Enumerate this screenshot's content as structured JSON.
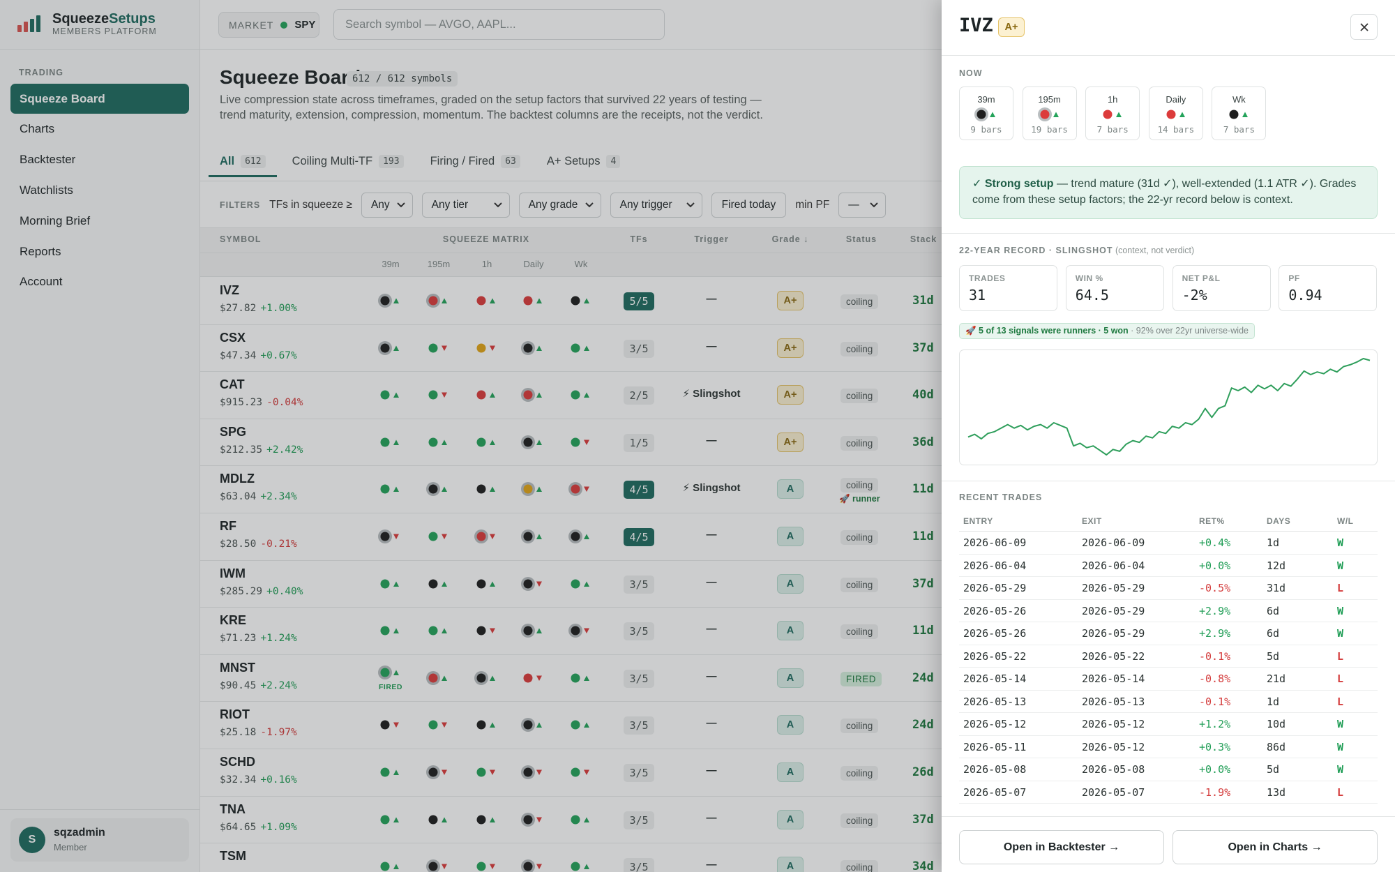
{
  "brand": {
    "name_a": "Squeeze",
    "name_b": "Setups",
    "subtitle": "MEMBERS PLATFORM"
  },
  "sidebar": {
    "section": "TRADING",
    "nav": [
      {
        "label": "Squeeze Board",
        "active": true
      },
      {
        "label": "Charts"
      },
      {
        "label": "Backtester"
      },
      {
        "label": "Watchlists"
      },
      {
        "label": "Morning Brief"
      },
      {
        "label": "Reports"
      },
      {
        "label": "Account"
      }
    ],
    "user": {
      "initial": "S",
      "name": "sqzadmin",
      "role": "Member"
    }
  },
  "topbar": {
    "market_label": "MARKET",
    "market_symbol": "SPY",
    "search_placeholder": "Search symbol — AVGO, AAPL..."
  },
  "board": {
    "title": "Squeeze Board",
    "count": "612 / 612 symbols",
    "description": "Live compression state across timeframes, graded on the setup factors that survived 22 years of testing — trend maturity, extension, compression, momentum. The backtest columns are the receipts, not the verdict.",
    "tabs": [
      {
        "label": "All",
        "count": "612",
        "active": true
      },
      {
        "label": "Coiling Multi-TF",
        "count": "193"
      },
      {
        "label": "Firing / Fired",
        "count": "63"
      },
      {
        "label": "A+ Setups",
        "count": "4"
      }
    ],
    "filters": {
      "label": "FILTERS",
      "tfs_label": "TFs in squeeze ≥",
      "tfs_select": "Any",
      "tier_select": "Any tier",
      "grade_select": "Any grade",
      "trigger_select": "Any trigger",
      "fired_button": "Fired today",
      "pf_label": "min PF",
      "pf_select": "—"
    },
    "columns": {
      "symbol": "SYMBOL",
      "matrix": "SQUEEZE MATRIX",
      "tfs": "TFs",
      "trigger": "Trigger",
      "grade": "Grade ↓",
      "status": "Status",
      "stack": "Stack"
    },
    "timeframes": [
      "39m",
      "195m",
      "1h",
      "Daily",
      "Wk"
    ],
    "rows": [
      {
        "symbol": "IVZ",
        "price": "$27.82",
        "change": "+1.00%",
        "matrix": [
          "black up ring",
          "red up ring",
          "red up",
          "red up",
          "black up"
        ],
        "tfs": "5/5",
        "trigger": "—",
        "grade": "A+",
        "status": "coiling",
        "stack": "31d"
      },
      {
        "symbol": "CSX",
        "price": "$47.34",
        "change": "+0.67%",
        "matrix": [
          "black up ring",
          "green down",
          "amber down",
          "black up ring",
          "green up"
        ],
        "tfs": "3/5",
        "trigger": "—",
        "grade": "A+",
        "status": "coiling",
        "stack": "37d"
      },
      {
        "symbol": "CAT",
        "price": "$915.23",
        "change": "-0.04%",
        "matrix": [
          "green up",
          "green down",
          "red up",
          "red up ring",
          "green up"
        ],
        "tfs": "2/5",
        "trigger": "⚡ Slingshot",
        "grade": "A+",
        "status": "coiling",
        "stack": "40d"
      },
      {
        "symbol": "SPG",
        "price": "$212.35",
        "change": "+2.42%",
        "matrix": [
          "green up",
          "green up",
          "green up",
          "black up ring",
          "green down"
        ],
        "tfs": "1/5",
        "trigger": "—",
        "grade": "A+",
        "status": "coiling",
        "stack": "36d"
      },
      {
        "symbol": "MDLZ",
        "price": "$63.04",
        "change": "+2.34%",
        "matrix": [
          "green up",
          "black up ring",
          "black up",
          "amber up ring",
          "red down ring"
        ],
        "tfs": "4/5",
        "trigger": "⚡ Slingshot",
        "grade": "A",
        "status": "coiling",
        "status_note": "🚀 runner",
        "stack": "11d"
      },
      {
        "symbol": "RF",
        "price": "$28.50",
        "change": "-0.21%",
        "matrix": [
          "black down ring",
          "green down",
          "red down ring",
          "black up ring",
          "black up ring"
        ],
        "tfs": "4/5",
        "trigger": "—",
        "grade": "A",
        "status": "coiling",
        "stack": "11d"
      },
      {
        "symbol": "IWM",
        "price": "$285.29",
        "change": "+0.40%",
        "matrix": [
          "green up",
          "black up",
          "black up",
          "black down ring",
          "green up"
        ],
        "tfs": "3/5",
        "trigger": "—",
        "grade": "A",
        "status": "coiling",
        "stack": "37d"
      },
      {
        "symbol": "KRE",
        "price": "$71.23",
        "change": "+1.24%",
        "matrix": [
          "green up",
          "green up",
          "black down",
          "black up ring",
          "black down ring"
        ],
        "tfs": "3/5",
        "trigger": "—",
        "grade": "A",
        "status": "coiling",
        "stack": "11d"
      },
      {
        "symbol": "MNST",
        "price": "$90.45",
        "change": "+2.24%",
        "matrix": [
          {
            "state": "green up ring",
            "note": "FIRED"
          },
          "red up ring",
          "black up ring",
          "red down",
          "green up"
        ],
        "tfs": "3/5",
        "trigger": "—",
        "grade": "A",
        "status": "FIRED",
        "stack": "24d"
      },
      {
        "symbol": "RIOT",
        "price": "$25.18",
        "change": "-1.97%",
        "matrix": [
          "black down",
          "green down",
          "black up",
          "black up ring",
          "green up"
        ],
        "tfs": "3/5",
        "trigger": "—",
        "grade": "A",
        "status": "coiling",
        "stack": "24d"
      },
      {
        "symbol": "SCHD",
        "price": "$32.34",
        "change": "+0.16%",
        "matrix": [
          "green up",
          "black down ring",
          "green down",
          "black down ring",
          "green down"
        ],
        "tfs": "3/5",
        "trigger": "—",
        "grade": "A",
        "status": "coiling",
        "stack": "26d"
      },
      {
        "symbol": "TNA",
        "price": "$64.65",
        "change": "+1.09%",
        "matrix": [
          "green up",
          "black up",
          "black up",
          "black down ring",
          "green up"
        ],
        "tfs": "3/5",
        "trigger": "—",
        "grade": "A",
        "status": "coiling",
        "stack": "37d"
      },
      {
        "symbol": "TSM",
        "matrix": [
          "green up",
          "black down ring",
          "green down",
          "black down ring",
          "green up"
        ],
        "tfs": "3/5",
        "trigger": "—",
        "grade": "A",
        "status": "coiling",
        "stack": "34d"
      }
    ]
  },
  "drawer": {
    "symbol": "IVZ",
    "grade": "A+",
    "now_label": "NOW",
    "now": [
      {
        "tf": "39m",
        "state": "black up ring",
        "bars": "9 bars"
      },
      {
        "tf": "195m",
        "state": "red up ring",
        "bars": "19 bars"
      },
      {
        "tf": "1h",
        "state": "red up",
        "bars": "7 bars"
      },
      {
        "tf": "Daily",
        "state": "red up",
        "bars": "14 bars"
      },
      {
        "tf": "Wk",
        "state": "black up",
        "bars": "7 bars"
      }
    ],
    "callout": {
      "strong": "✓ Strong setup",
      "text": " — trend mature (31d ✓), well-extended (1.1 ATR ✓). Grades come from these setup factors; the 22-yr record below is context."
    },
    "record": {
      "title": "22-YEAR RECORD · SLINGSHOT",
      "title_note": " (context, not verdict)",
      "stats": [
        {
          "label": "TRADES",
          "value": "31"
        },
        {
          "label": "WIN %",
          "value": "64.5"
        },
        {
          "label": "NET P&L",
          "value": "-2%"
        },
        {
          "label": "PF",
          "value": "0.94"
        }
      ],
      "runner": "🚀 5 of 13 signals were runners · 5 won",
      "runner_note": " · 92% over 22yr universe-wide",
      "equity": {
        "type": "line",
        "color": "#2e9e5b",
        "values": [
          30,
          33,
          28,
          34,
          36,
          40,
          44,
          40,
          43,
          38,
          42,
          44,
          40,
          46,
          43,
          40,
          20,
          23,
          18,
          20,
          15,
          10,
          16,
          14,
          22,
          26,
          24,
          31,
          29,
          36,
          34,
          42,
          40,
          46,
          44,
          50,
          62,
          52,
          62,
          65,
          85,
          82,
          86,
          80,
          88,
          84,
          88,
          82,
          90,
          87,
          95,
          104,
          100,
          103,
          101,
          106,
          103,
          109,
          111,
          114,
          118,
          116
        ]
      }
    },
    "trades_title": "RECENT TRADES",
    "trades_header": [
      "ENTRY",
      "EXIT",
      "RET%",
      "DAYS",
      "W/L"
    ],
    "trades": [
      [
        "2026-06-09",
        "2026-06-09",
        "+0.4%",
        "1d",
        "W"
      ],
      [
        "2026-06-04",
        "2026-06-04",
        "+0.0%",
        "12d",
        "W"
      ],
      [
        "2026-05-29",
        "2026-05-29",
        "-0.5%",
        "31d",
        "L"
      ],
      [
        "2026-05-26",
        "2026-05-29",
        "+2.9%",
        "6d",
        "W"
      ],
      [
        "2026-05-26",
        "2026-05-29",
        "+2.9%",
        "6d",
        "W"
      ],
      [
        "2026-05-22",
        "2026-05-22",
        "-0.1%",
        "5d",
        "L"
      ],
      [
        "2026-05-14",
        "2026-05-14",
        "-0.8%",
        "21d",
        "L"
      ],
      [
        "2026-05-13",
        "2026-05-13",
        "-0.1%",
        "1d",
        "L"
      ],
      [
        "2026-05-12",
        "2026-05-12",
        "+1.2%",
        "10d",
        "W"
      ],
      [
        "2026-05-11",
        "2026-05-12",
        "+0.3%",
        "86d",
        "W"
      ],
      [
        "2026-05-08",
        "2026-05-08",
        "+0.0%",
        "5d",
        "W"
      ],
      [
        "2026-05-07",
        "2026-05-07",
        "-1.9%",
        "13d",
        "L"
      ]
    ],
    "buttons": [
      "Open in Backtester →",
      "Open in Charts →"
    ]
  }
}
